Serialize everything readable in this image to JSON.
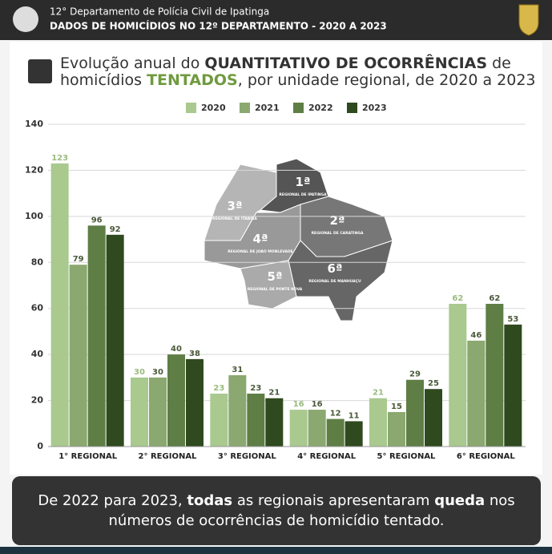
{
  "header": {
    "line1": "12° Departamento de Polícia Civil de Ipatinga",
    "line2": "DADOS DE HOMICÍDIOS NO 12º DEPARTAMENTO - 2020 A 2023"
  },
  "title_lines": [
    [
      "Evolução anual do ",
      "QUANTITATIVO DE OCORRÊNCIAS",
      " de"
    ],
    [
      "homicídios ",
      "TENTADOS",
      ", por unidade regional, de 2020 a 2023"
    ]
  ],
  "map": {
    "regions": [
      {
        "number": "1ª",
        "label": "REGIONAL DE IPATINGA"
      },
      {
        "number": "2ª",
        "label": "REGIONAL DE CARATINGA"
      },
      {
        "number": "3ª",
        "label": "REGIONAL DE ITABIRA"
      },
      {
        "number": "4ª",
        "label": "REGIONAL DE JOÃO MONLEVADE"
      },
      {
        "number": "5ª",
        "label": "REGIONAL DE PONTE NOVA"
      },
      {
        "number": "6ª",
        "label": "REGIONAL DE MANHUAÇU"
      }
    ]
  },
  "chart_data": {
    "type": "bar",
    "categories": [
      "1° REGIONAL",
      "2° REGIONAL",
      "3° REGIONAL",
      "4° REGIONAL",
      "5° REGIONAL",
      "6° REGIONAL"
    ],
    "series": [
      {
        "name": "2020",
        "color": "#a9c98f",
        "values": [
          123,
          30,
          23,
          16,
          21,
          62
        ]
      },
      {
        "name": "2021",
        "color": "#8aa870",
        "values": [
          79,
          30,
          31,
          16,
          15,
          46
        ]
      },
      {
        "name": "2022",
        "color": "#5e7e45",
        "values": [
          96,
          40,
          23,
          12,
          29,
          62
        ]
      },
      {
        "name": "2023",
        "color": "#2f4a1e",
        "values": [
          92,
          38,
          21,
          11,
          25,
          53
        ]
      }
    ],
    "ylim": [
      0,
      140
    ],
    "yticks": [
      0,
      20,
      40,
      60,
      80,
      100,
      120,
      140
    ],
    "grid": true
  },
  "footer_lines": [
    [
      "De 2022 para 2023, ",
      "todas",
      " as regionais apresentaram ",
      "queda",
      " nos"
    ],
    [
      "números de ocorrências de homicídio tentado."
    ]
  ]
}
